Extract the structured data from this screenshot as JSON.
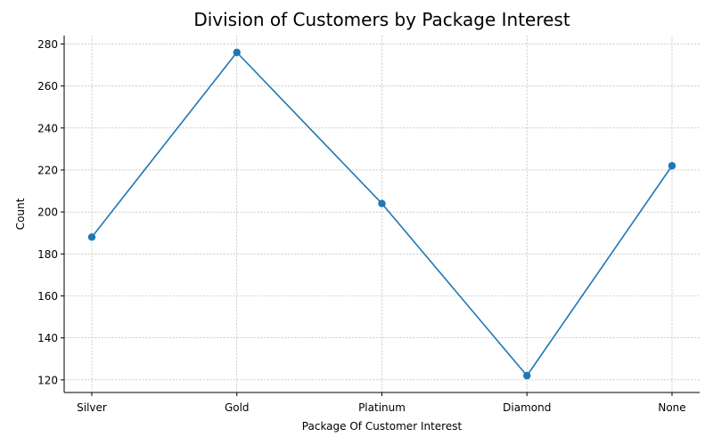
{
  "chart_data": {
    "type": "line",
    "title": "Division of Customers by Package Interest",
    "xlabel": "Package Of Customer Interest",
    "ylabel": "Count",
    "categories": [
      "Silver",
      "Gold",
      "Platinum",
      "Diamond",
      "None"
    ],
    "series": [
      {
        "values": [
          188,
          276,
          204,
          122,
          222
        ],
        "color": "#1f77b4"
      }
    ],
    "ylim": [
      114,
      284
    ],
    "yticks": [
      120,
      140,
      160,
      180,
      200,
      220,
      240,
      260,
      280
    ],
    "grid": true,
    "marker": "circle",
    "spines": [
      "left",
      "bottom"
    ]
  }
}
